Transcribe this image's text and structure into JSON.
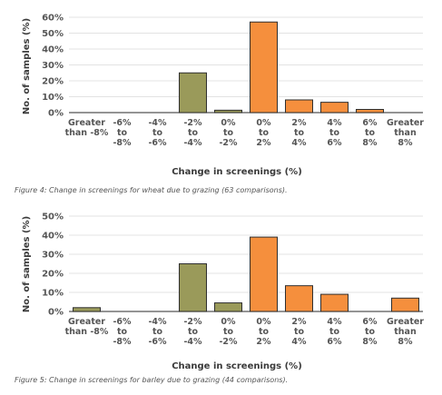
{
  "chart_data": [
    {
      "type": "bar",
      "categories": [
        [
          "Greater",
          "than -8%"
        ],
        [
          "-6%",
          "to",
          "-8%"
        ],
        [
          "-4%",
          "to",
          "-6%"
        ],
        [
          "-2%",
          "to",
          "-4%"
        ],
        [
          "0%",
          "to",
          "-2%"
        ],
        [
          "0%",
          "to",
          "2%"
        ],
        [
          "2%",
          "to",
          "4%"
        ],
        [
          "4%",
          "to",
          "6%"
        ],
        [
          "6%",
          "to",
          "8%"
        ],
        [
          "Greater",
          "than",
          "8%"
        ]
      ],
      "values": [
        0,
        0,
        0,
        25,
        1.5,
        57,
        8,
        6.5,
        2,
        0
      ],
      "bar_colors": [
        "#9a9a5a",
        "#9a9a5a",
        "#9a9a5a",
        "#9a9a5a",
        "#9a9a5a",
        "#f58f3d",
        "#f58f3d",
        "#f58f3d",
        "#f58f3d",
        "#f58f3d"
      ],
      "yticks": [
        "0%",
        "10%",
        "20%",
        "30%",
        "40%",
        "50%",
        "60%"
      ],
      "ylim": [
        0,
        60
      ],
      "xlabel": "Change in screenings (%)",
      "ylabel": "No. of samples (%)",
      "grid": true
    },
    {
      "type": "bar",
      "categories": [
        [
          "Greater",
          "than -8%"
        ],
        [
          "-6%",
          "to",
          "-8%"
        ],
        [
          "-4%",
          "to",
          "-6%"
        ],
        [
          "-2%",
          "to",
          "-4%"
        ],
        [
          "0%",
          "to",
          "-2%"
        ],
        [
          "0%",
          "to",
          "2%"
        ],
        [
          "2%",
          "to",
          "4%"
        ],
        [
          "4%",
          "to",
          "6%"
        ],
        [
          "6%",
          "to",
          "8%"
        ],
        [
          "Greater",
          "than",
          "8%"
        ]
      ],
      "values": [
        2,
        0,
        0,
        25,
        4.5,
        39,
        13.5,
        9,
        0,
        7
      ],
      "bar_colors": [
        "#9a9a5a",
        "#9a9a5a",
        "#9a9a5a",
        "#9a9a5a",
        "#9a9a5a",
        "#f58f3d",
        "#f58f3d",
        "#f58f3d",
        "#f58f3d",
        "#f58f3d"
      ],
      "yticks": [
        "0%",
        "10%",
        "20%",
        "30%",
        "40%",
        "50%"
      ],
      "ylim": [
        0,
        50
      ],
      "xlabel": "Change in screenings (%)",
      "ylabel": "No. of samples (%)",
      "grid": true
    }
  ],
  "captions": [
    "Figure 4: Change in screenings for wheat due to grazing (63 comparisons).",
    "Figure 5: Change in screenings for barley due to grazing (44 comparisons)."
  ]
}
